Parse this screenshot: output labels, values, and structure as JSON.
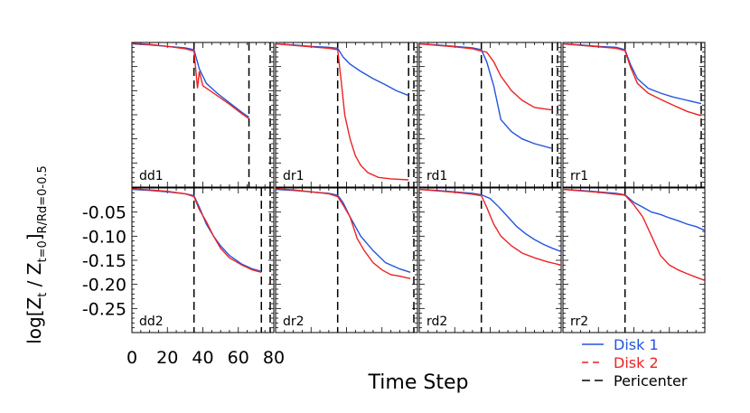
{
  "figure": {
    "ylabel": "log[Z_t / Z_{t=0}]_{R/Rd=0-0.5}",
    "ylabel_parts": {
      "main": "log[Z",
      "sub1": "t",
      "mid": " / Z",
      "sub2": "t=0",
      "close": "]",
      "sub3": "R/Rd=0-0.5"
    },
    "xlabel": "Time Step",
    "x_ticks": [
      "0",
      "20",
      "40",
      "60",
      "80"
    ],
    "y_ticks": [
      "-0.05",
      "-0.10",
      "-0.15",
      "-0.20",
      "-0.25"
    ],
    "legend": [
      {
        "label": "Disk 1",
        "color": "#2255dd",
        "dash": "solid"
      },
      {
        "label": "Disk 2",
        "color": "#ee2222",
        "dash": "dashed"
      },
      {
        "label": "Pericenter",
        "color": "#000000",
        "dash": "longdash"
      }
    ],
    "colors": {
      "disk1": "#2255dd",
      "disk2": "#ee2222",
      "pericenter": "#000000"
    }
  },
  "chart_data": [
    {
      "type": "line",
      "panel": "dd1",
      "xlim": [
        0,
        80
      ],
      "ylim": [
        -0.3,
        0.0
      ],
      "pericenters": [
        35,
        66,
        80
      ],
      "series": [
        {
          "name": "Disk 1",
          "x": [
            0,
            10,
            20,
            30,
            35,
            38,
            42,
            48,
            55,
            62,
            66
          ],
          "y": [
            -0.003,
            -0.005,
            -0.008,
            -0.011,
            -0.015,
            -0.055,
            -0.085,
            -0.105,
            -0.125,
            -0.145,
            -0.155
          ]
        },
        {
          "name": "Disk 2",
          "x": [
            0,
            10,
            20,
            30,
            35,
            37,
            38,
            40,
            44,
            48,
            55,
            62,
            66
          ],
          "y": [
            -0.002,
            -0.004,
            -0.008,
            -0.013,
            -0.018,
            -0.095,
            -0.06,
            -0.09,
            -0.1,
            -0.11,
            -0.128,
            -0.148,
            -0.158
          ]
        }
      ]
    },
    {
      "type": "line",
      "panel": "dr1",
      "xlim": [
        0,
        80
      ],
      "ylim": [
        -0.3,
        0.0
      ],
      "pericenters": [
        35,
        75,
        80
      ],
      "series": [
        {
          "name": "Disk 1",
          "x": [
            0,
            10,
            20,
            30,
            35,
            38,
            42,
            48,
            55,
            62,
            68,
            75
          ],
          "y": [
            -0.003,
            -0.005,
            -0.008,
            -0.01,
            -0.012,
            -0.03,
            -0.045,
            -0.06,
            -0.075,
            -0.088,
            -0.1,
            -0.11
          ]
        },
        {
          "name": "Disk 2",
          "x": [
            0,
            10,
            20,
            30,
            35,
            37,
            39,
            42,
            45,
            48,
            52,
            58,
            65,
            75
          ],
          "y": [
            -0.003,
            -0.006,
            -0.009,
            -0.012,
            -0.015,
            -0.08,
            -0.15,
            -0.2,
            -0.235,
            -0.255,
            -0.27,
            -0.28,
            -0.283,
            -0.285
          ]
        }
      ]
    },
    {
      "type": "line",
      "panel": "rd1",
      "xlim": [
        0,
        80
      ],
      "ylim": [
        -0.3,
        0.0
      ],
      "pericenters": [
        35,
        75,
        80
      ],
      "series": [
        {
          "name": "Disk 1",
          "x": [
            0,
            10,
            20,
            30,
            35,
            38,
            42,
            46,
            52,
            58,
            65,
            75
          ],
          "y": [
            -0.003,
            -0.005,
            -0.008,
            -0.011,
            -0.015,
            -0.04,
            -0.09,
            -0.16,
            -0.185,
            -0.2,
            -0.21,
            -0.22
          ]
        },
        {
          "name": "Disk 2",
          "x": [
            0,
            10,
            20,
            30,
            35,
            38,
            42,
            46,
            52,
            58,
            65,
            75
          ],
          "y": [
            -0.003,
            -0.006,
            -0.009,
            -0.013,
            -0.018,
            -0.02,
            -0.04,
            -0.07,
            -0.1,
            -0.12,
            -0.135,
            -0.14
          ]
        }
      ]
    },
    {
      "type": "line",
      "panel": "rr1",
      "xlim": [
        0,
        80
      ],
      "ylim": [
        -0.3,
        0.0
      ],
      "pericenters": [
        35,
        80
      ],
      "series": [
        {
          "name": "Disk 1",
          "x": [
            0,
            10,
            20,
            30,
            35,
            38,
            42,
            48,
            55,
            62,
            70,
            78
          ],
          "y": [
            -0.003,
            -0.005,
            -0.008,
            -0.01,
            -0.015,
            -0.045,
            -0.075,
            -0.095,
            -0.105,
            -0.113,
            -0.12,
            -0.127
          ]
        },
        {
          "name": "Disk 2",
          "x": [
            0,
            10,
            20,
            30,
            35,
            38,
            42,
            48,
            55,
            62,
            70,
            78
          ],
          "y": [
            -0.003,
            -0.006,
            -0.009,
            -0.012,
            -0.017,
            -0.05,
            -0.085,
            -0.105,
            -0.118,
            -0.13,
            -0.143,
            -0.152
          ]
        }
      ]
    },
    {
      "type": "line",
      "panel": "dd2",
      "xlim": [
        0,
        80
      ],
      "ylim": [
        -0.3,
        0.0
      ],
      "pericenters": [
        35,
        73,
        80
      ],
      "series": [
        {
          "name": "Disk 1",
          "x": [
            0,
            10,
            20,
            30,
            35,
            38,
            42,
            46,
            50,
            55,
            62,
            68,
            73
          ],
          "y": [
            -0.003,
            -0.005,
            -0.008,
            -0.012,
            -0.016,
            -0.04,
            -0.075,
            -0.1,
            -0.12,
            -0.14,
            -0.158,
            -0.168,
            -0.173
          ]
        },
        {
          "name": "Disk 2",
          "x": [
            0,
            10,
            20,
            30,
            35,
            38,
            42,
            46,
            50,
            55,
            62,
            68,
            73
          ],
          "y": [
            -0.002,
            -0.004,
            -0.007,
            -0.012,
            -0.018,
            -0.045,
            -0.07,
            -0.1,
            -0.125,
            -0.145,
            -0.16,
            -0.17,
            -0.175
          ]
        }
      ]
    },
    {
      "type": "line",
      "panel": "dr2",
      "xlim": [
        0,
        80
      ],
      "ylim": [
        -0.3,
        0.0
      ],
      "pericenters": [
        35,
        80
      ],
      "series": [
        {
          "name": "Disk 1",
          "x": [
            0,
            10,
            20,
            30,
            35,
            38,
            42,
            48,
            55,
            62,
            70,
            76
          ],
          "y": [
            -0.003,
            -0.005,
            -0.008,
            -0.011,
            -0.015,
            -0.03,
            -0.06,
            -0.1,
            -0.13,
            -0.155,
            -0.168,
            -0.175
          ]
        },
        {
          "name": "Disk 2",
          "x": [
            0,
            10,
            20,
            30,
            35,
            38,
            42,
            46,
            50,
            55,
            60,
            65,
            70,
            76
          ],
          "y": [
            -0.002,
            -0.004,
            -0.008,
            -0.012,
            -0.018,
            -0.035,
            -0.06,
            -0.105,
            -0.13,
            -0.155,
            -0.17,
            -0.18,
            -0.183,
            -0.188
          ]
        }
      ]
    },
    {
      "type": "line",
      "panel": "rd2",
      "xlim": [
        0,
        80
      ],
      "ylim": [
        -0.3,
        0.0
      ],
      "pericenters": [
        35
      ],
      "series": [
        {
          "name": "Disk 1",
          "x": [
            0,
            10,
            20,
            30,
            35,
            40,
            45,
            50,
            55,
            60,
            65,
            70,
            75,
            80
          ],
          "y": [
            -0.003,
            -0.005,
            -0.008,
            -0.011,
            -0.014,
            -0.022,
            -0.04,
            -0.06,
            -0.08,
            -0.095,
            -0.107,
            -0.117,
            -0.125,
            -0.132
          ]
        },
        {
          "name": "Disk 2",
          "x": [
            0,
            10,
            20,
            30,
            35,
            38,
            42,
            46,
            52,
            58,
            65,
            72,
            80
          ],
          "y": [
            -0.003,
            -0.006,
            -0.009,
            -0.013,
            -0.016,
            -0.04,
            -0.075,
            -0.1,
            -0.12,
            -0.135,
            -0.145,
            -0.153,
            -0.16
          ]
        }
      ]
    },
    {
      "type": "line",
      "panel": "rr2",
      "xlim": [
        0,
        80
      ],
      "ylim": [
        -0.3,
        0.0
      ],
      "pericenters": [
        35
      ],
      "series": [
        {
          "name": "Disk 1",
          "x": [
            0,
            10,
            20,
            30,
            35,
            40,
            45,
            50,
            55,
            60,
            65,
            70,
            75,
            80
          ],
          "y": [
            -0.003,
            -0.005,
            -0.008,
            -0.011,
            -0.014,
            -0.03,
            -0.04,
            -0.05,
            -0.055,
            -0.062,
            -0.068,
            -0.075,
            -0.08,
            -0.088
          ]
        },
        {
          "name": "Disk 2",
          "x": [
            0,
            10,
            20,
            30,
            35,
            40,
            45,
            50,
            55,
            60,
            65,
            70,
            75,
            80
          ],
          "y": [
            -0.003,
            -0.006,
            -0.009,
            -0.013,
            -0.015,
            -0.035,
            -0.06,
            -0.1,
            -0.14,
            -0.16,
            -0.17,
            -0.178,
            -0.185,
            -0.192
          ]
        }
      ]
    }
  ]
}
